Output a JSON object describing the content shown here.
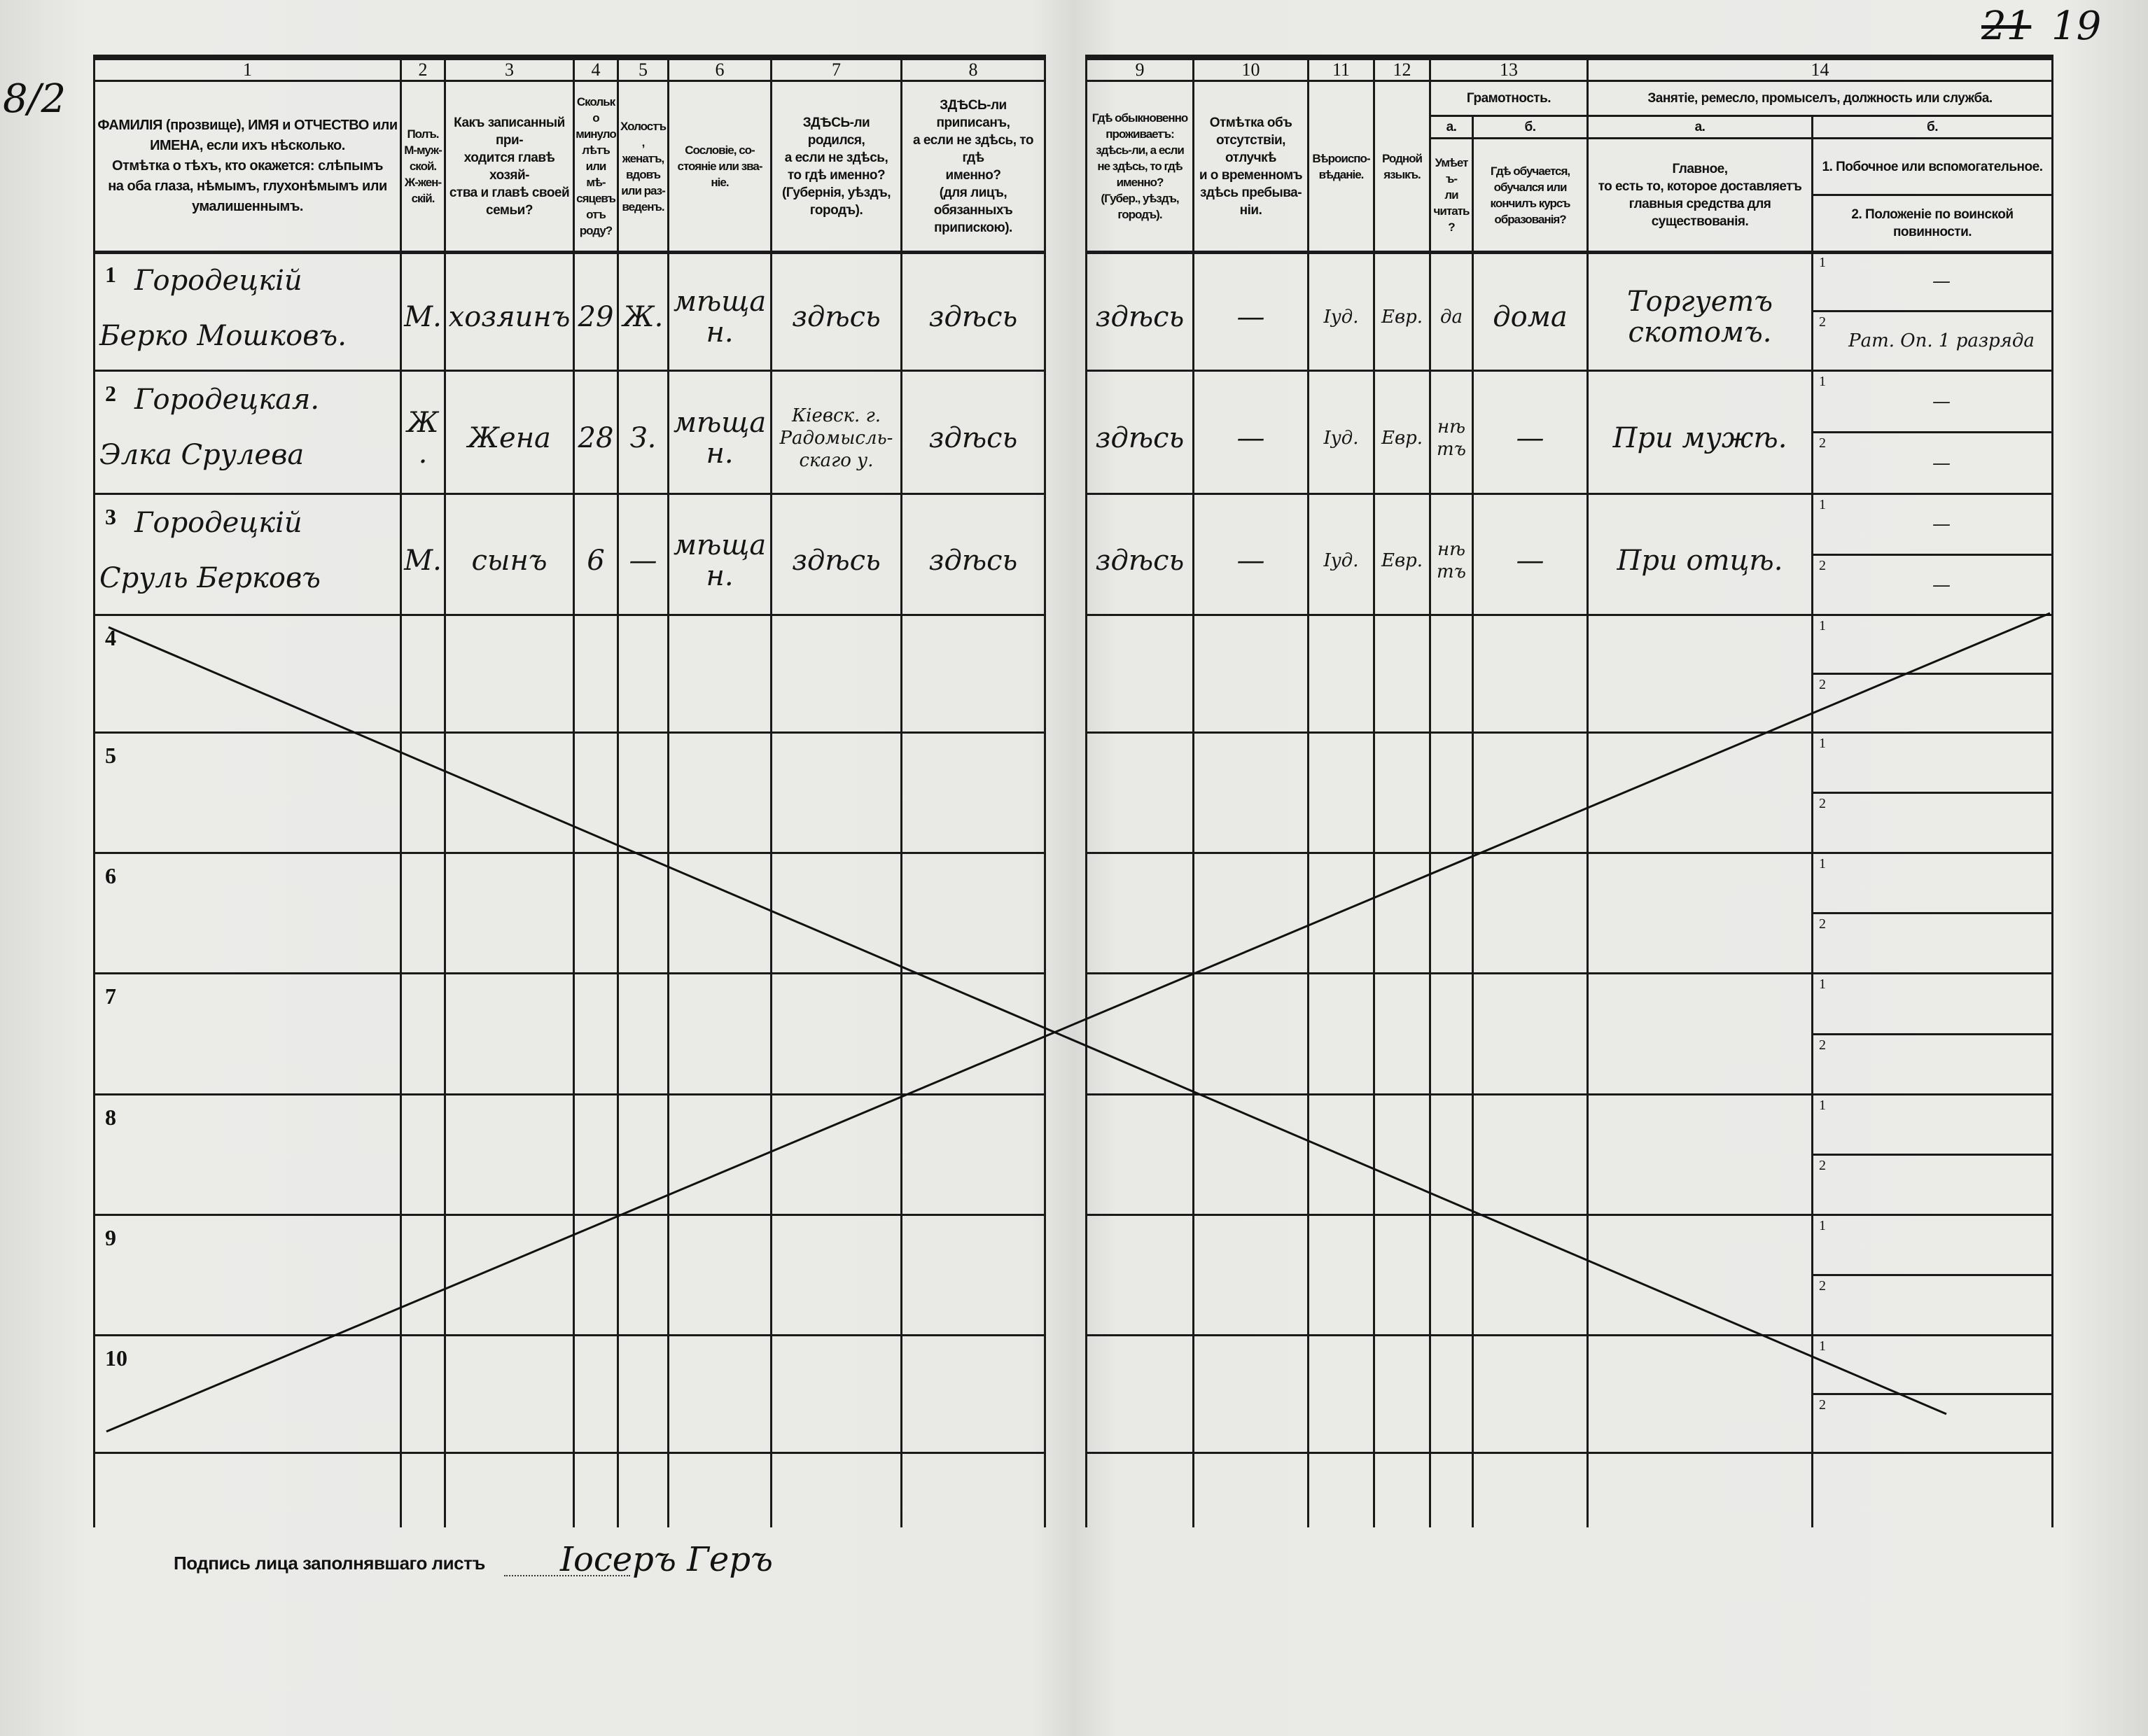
{
  "margin_notes": {
    "left": "8/2",
    "right_crossed": "21",
    "right": "19"
  },
  "columns": [
    {
      "num": "1",
      "text": "ФАМИЛІЯ (прозвище), ИМЯ и ОТЧЕСТВО или\nИМЕНА, если ихъ нѣсколько.\nОтмѣтка о тѣхъ, кто окажется: слѣпымъ\nна оба глаза, нѣмымъ, глухонѣмымъ или\nумалишеннымъ."
    },
    {
      "num": "2",
      "text": "Полъ.\nМ-муж-\nской.\nЖ-жен-\nскій."
    },
    {
      "num": "3",
      "text": "Какъ записанный при-\nходится главѣ хозяй-\nства и главѣ своей\nсемьи?"
    },
    {
      "num": "4",
      "text": "Сколько\nминуло\nлѣтъ\nили мѣ-\nсяцевъ\nотъ роду?"
    },
    {
      "num": "5",
      "text": "Холостъ,\nженатъ,\nвдовъ\nили раз-\nведенъ."
    },
    {
      "num": "6",
      "text": "Сословіе, со-\nстояніе или зва-\nніе."
    },
    {
      "num": "7",
      "text": "ЗДѢСЬ-ли родился,\nа если не здѣсь,\nто гдѣ именно?\n(Губернія, уѣздъ, городъ)."
    },
    {
      "num": "8",
      "text": "ЗДѢСЬ-ли приписанъ,\nа если не здѣсь, то гдѣ\nименно?\n(для лицъ, обязанныхъ\nприпискою)."
    },
    {
      "num": "9",
      "text": "Гдѣ обыкновенно\nпроживаетъ:\nздѣсь-ли, а если\nне здѣсь, то гдѣ\nименно?\n(Губер., уѣздъ, городъ)."
    },
    {
      "num": "10",
      "text": "Отмѣтка объ\nотсутствіи, отлучкѣ\nи о временномъ\nздѣсь пребыва-\nніи."
    },
    {
      "num": "11",
      "text": "Вѣроиспо-\nвѣданіе."
    },
    {
      "num": "12",
      "text": "Родной\nязыкъ."
    }
  ],
  "group13": {
    "num": "13",
    "title": "Грамотность.",
    "a": "а.",
    "b": "б.",
    "a_text": "Умѣетъ-\nли\nчитать?",
    "b_text": "Гдѣ обучается,\nобучался или\nкончилъ курсъ\nобразованія?"
  },
  "group14": {
    "num": "14",
    "title": "Занятіе, ремесло, промыселъ, должность или служба.",
    "a": "а.",
    "b": "б.",
    "a_text": "Главное,\nто есть то, которое доставляетъ\nглавныя средства для существованія.",
    "b1_text": "1. Побочное или вспомогательное.",
    "b2_text": "2. Положеніе по воинской повинности."
  },
  "row_numbers": [
    "1",
    "2",
    "3",
    "4",
    "5",
    "6",
    "7",
    "8",
    "9",
    "10"
  ],
  "sub_labels": [
    "1",
    "2"
  ],
  "rows": [
    {
      "surname": "Городецкій",
      "given": "Берко Мошковъ.",
      "sex": "М.",
      "relation": "хозяинъ",
      "age": "29",
      "marital": "Ж.",
      "estate": "мѣщан.",
      "born": "здѣсь",
      "registered": "здѣсь",
      "residence": "здѣсь",
      "absence": "—",
      "religion": "Іуд.",
      "language": "Евр.",
      "reads": "да",
      "education": "дома",
      "occupation": "Торгуетъ\nскотомъ.",
      "secondary": "—",
      "military": "Рат. Оп. 1 разряда"
    },
    {
      "surname": "Городецкая.",
      "given": "Элка Срулева",
      "sex": "Ж.",
      "relation": "Жена",
      "age": "28",
      "marital": "З.",
      "estate": "мѣщан.",
      "born": "Кіевск. г.\nРадомысль-\nскаго у.",
      "registered": "здѣсь",
      "residence": "здѣсь",
      "absence": "—",
      "religion": "Іуд.",
      "language": "Евр.",
      "reads": "нѣтъ",
      "education": "—",
      "occupation": "При мужѣ.",
      "secondary": "—",
      "military": "—"
    },
    {
      "surname": "Городецкій",
      "given": "Сруль Берковъ",
      "sex": "М.",
      "relation": "сынъ",
      "age": "6",
      "marital": "—",
      "estate": "мѣщан.",
      "born": "здѣсь",
      "registered": "здѣсь",
      "residence": "здѣсь",
      "absence": "—",
      "religion": "Іуд.",
      "language": "Евр.",
      "reads": "нѣтъ",
      "education": "—",
      "occupation": "При отцѣ.",
      "secondary": "—",
      "military": "—"
    }
  ],
  "signature": {
    "label": "Подпись лица заполнявшаго листъ",
    "value": "Іосеръ Геръ"
  }
}
